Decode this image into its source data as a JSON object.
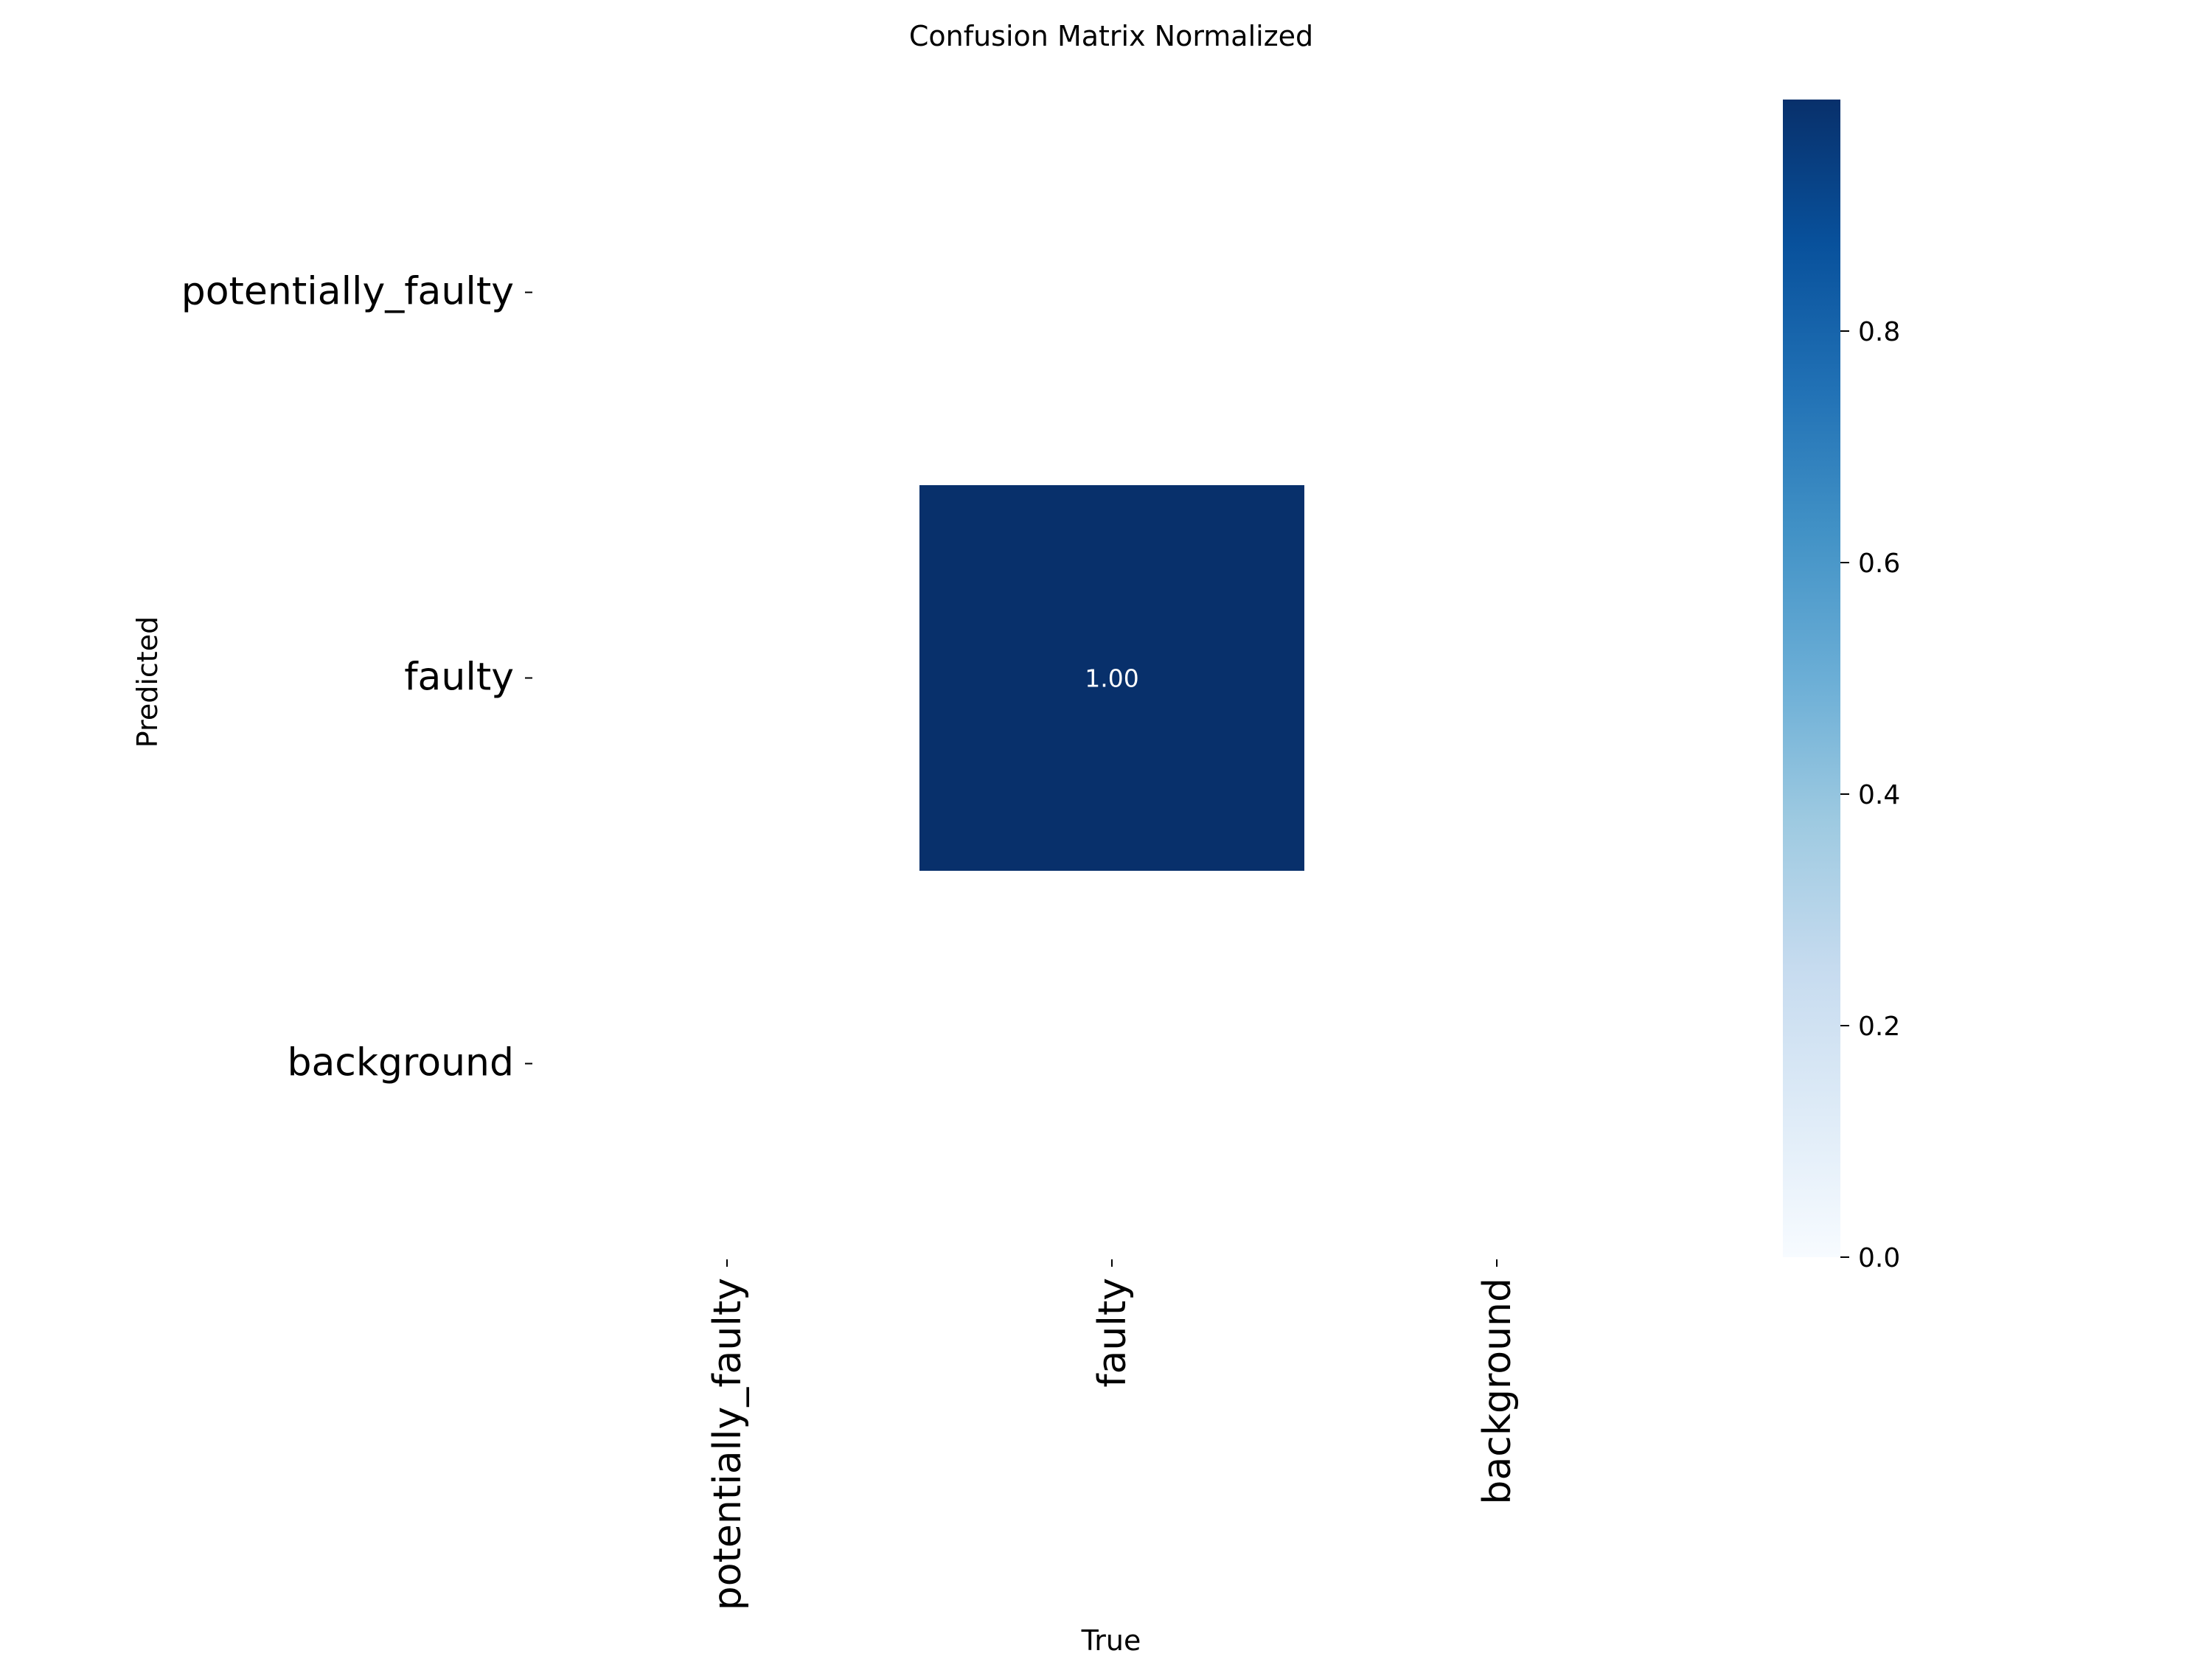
{
  "chart_data": {
    "type": "heatmap",
    "title": "Confusion Matrix Normalized",
    "xlabel": "True",
    "ylabel": "Predicted",
    "x_categories": [
      "potentially_faulty",
      "faulty",
      "background"
    ],
    "y_categories": [
      "potentially_faulty",
      "faulty",
      "background"
    ],
    "values": [
      [
        null,
        null,
        null
      ],
      [
        null,
        1.0,
        null
      ],
      [
        null,
        null,
        null
      ]
    ],
    "annotations": [
      {
        "row": 1,
        "col": 1,
        "text": "1.00"
      }
    ],
    "colormap": "Blues",
    "colormap_stops": [
      "#f7fbff",
      "#deebf7",
      "#c6dbef",
      "#9ecae1",
      "#6baed6",
      "#4292c6",
      "#2171b5",
      "#08519c",
      "#08306b"
    ],
    "colorbar": {
      "range": [
        0.0,
        1.0
      ],
      "ticks": [
        "0.0",
        "0.2",
        "0.4",
        "0.6",
        "0.8"
      ]
    },
    "cell_color": "#08306b",
    "annotation_color": "#ffffff",
    "grid": false,
    "legend": "colorbar-right"
  }
}
